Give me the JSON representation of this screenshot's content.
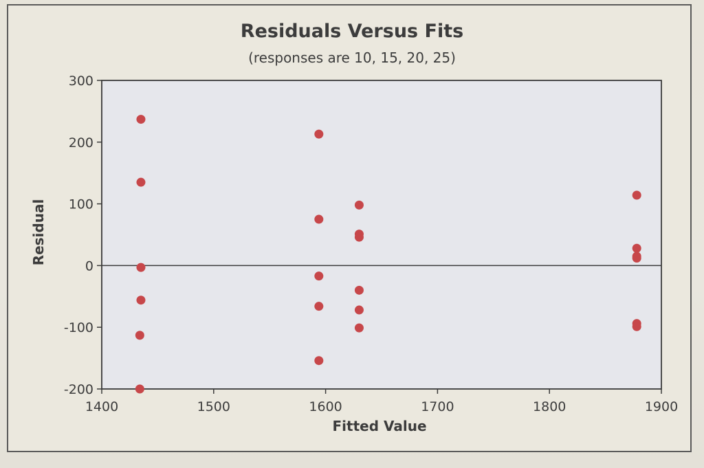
{
  "chart_data": {
    "type": "scatter",
    "title": "Residuals Versus Fits",
    "subtitle": "(responses are 10, 15, 20, 25)",
    "xlabel": "Fitted Value",
    "ylabel": "Residual",
    "xlim": [
      1400,
      1900
    ],
    "ylim": [
      -200,
      300
    ],
    "x_ticks": [
      1400,
      1500,
      1600,
      1700,
      1800,
      1900
    ],
    "y_ticks": [
      -200,
      -100,
      0,
      100,
      200,
      300
    ],
    "x_tick_labels": [
      "1400",
      "1500",
      "1600",
      "1700",
      "1800",
      "1900"
    ],
    "y_tick_labels": [
      "-200",
      "-100",
      "0",
      "100",
      "200",
      "300"
    ],
    "reference_line_y": 0,
    "grid": false,
    "point_color": "#c7474a",
    "points": [
      {
        "x": 1435,
        "y": 237
      },
      {
        "x": 1435,
        "y": 135
      },
      {
        "x": 1435,
        "y": -3
      },
      {
        "x": 1435,
        "y": -56
      },
      {
        "x": 1434,
        "y": -113
      },
      {
        "x": 1434,
        "y": -200
      },
      {
        "x": 1594,
        "y": 213
      },
      {
        "x": 1594,
        "y": 75
      },
      {
        "x": 1594,
        "y": -17
      },
      {
        "x": 1594,
        "y": -66
      },
      {
        "x": 1594,
        "y": -154
      },
      {
        "x": 1630,
        "y": 98
      },
      {
        "x": 1630,
        "y": 51
      },
      {
        "x": 1630,
        "y": 46
      },
      {
        "x": 1630,
        "y": -40
      },
      {
        "x": 1630,
        "y": -72
      },
      {
        "x": 1630,
        "y": -101
      },
      {
        "x": 1878,
        "y": 114
      },
      {
        "x": 1878,
        "y": 28
      },
      {
        "x": 1878,
        "y": 15
      },
      {
        "x": 1878,
        "y": 12
      },
      {
        "x": 1878,
        "y": -94
      },
      {
        "x": 1878,
        "y": -99
      }
    ]
  }
}
